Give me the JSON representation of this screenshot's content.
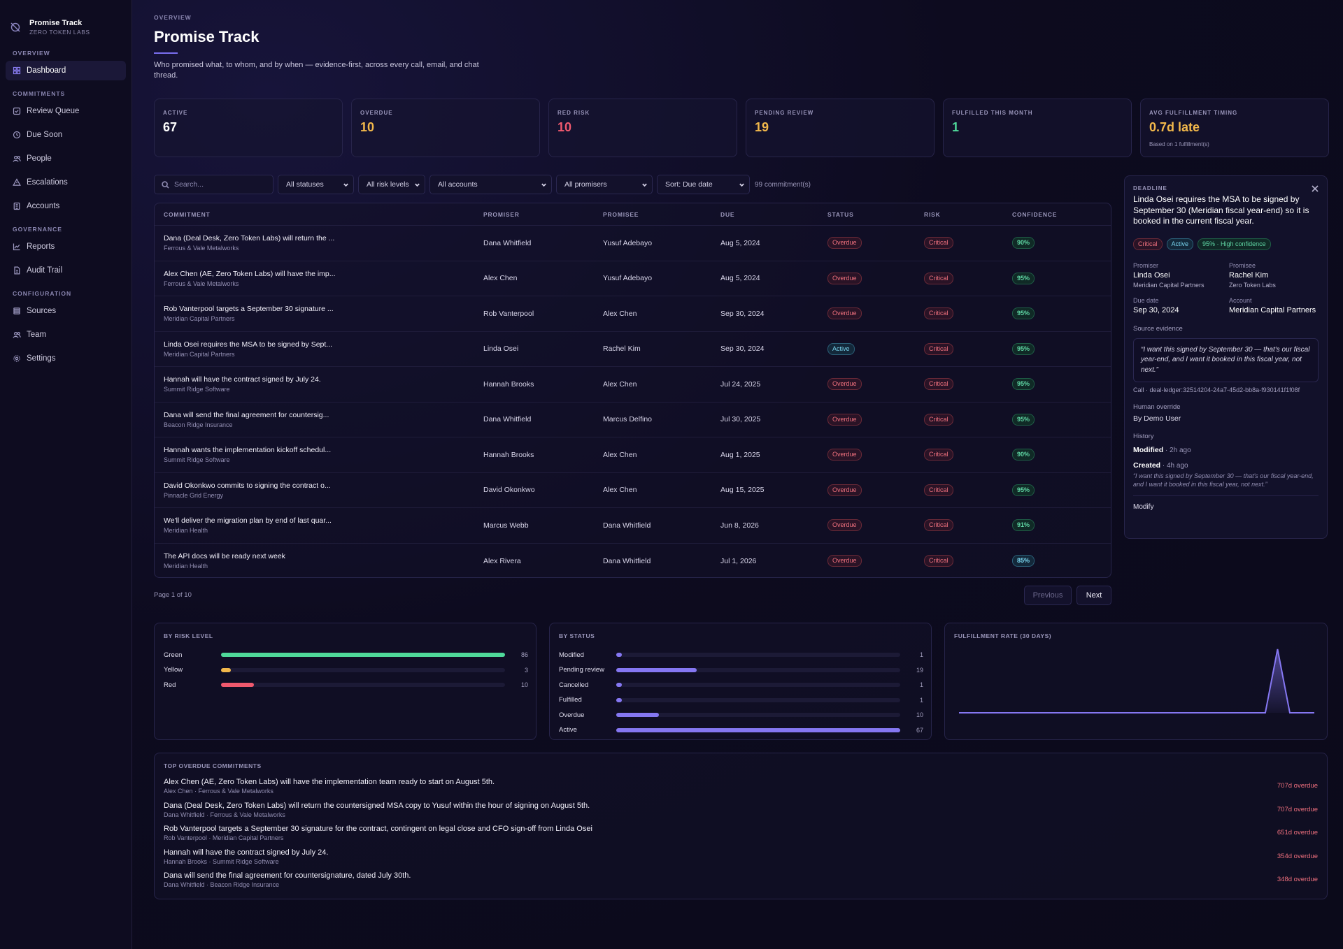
{
  "app": {
    "name": "Promise Track",
    "org": "ZERO TOKEN LABS"
  },
  "nav": {
    "sections": [
      {
        "label": "OVERVIEW",
        "items": [
          {
            "label": "Dashboard",
            "icon": "dashboard-icon",
            "active": true
          }
        ]
      },
      {
        "label": "COMMITMENTS",
        "items": [
          {
            "label": "Review Queue",
            "icon": "checkbox-icon"
          },
          {
            "label": "Due Soon",
            "icon": "clock-icon"
          },
          {
            "label": "People",
            "icon": "people-icon"
          },
          {
            "label": "Escalations",
            "icon": "warning-icon"
          },
          {
            "label": "Accounts",
            "icon": "building-icon"
          }
        ]
      },
      {
        "label": "GOVERNANCE",
        "items": [
          {
            "label": "Reports",
            "icon": "chart-icon"
          },
          {
            "label": "Audit Trail",
            "icon": "document-icon"
          }
        ]
      },
      {
        "label": "CONFIGURATION",
        "items": [
          {
            "label": "Sources",
            "icon": "list-icon"
          },
          {
            "label": "Team",
            "icon": "people-icon"
          },
          {
            "label": "Settings",
            "icon": "gear-icon"
          }
        ]
      }
    ]
  },
  "header": {
    "eyebrow": "OVERVIEW",
    "title": "Promise Track",
    "description": "Who promised what, to whom, and by when — evidence-first, across every call, email, and chat thread."
  },
  "stats": [
    {
      "label": "ACTIVE",
      "value": "67",
      "color": "#ffffff"
    },
    {
      "label": "OVERDUE",
      "value": "10",
      "color": "#f2b84b"
    },
    {
      "label": "RED RISK",
      "value": "10",
      "color": "#f0596e"
    },
    {
      "label": "PENDING REVIEW",
      "value": "19",
      "color": "#f2b84b"
    },
    {
      "label": "FULFILLED THIS MONTH",
      "value": "1",
      "color": "#4fd99a"
    },
    {
      "label": "AVG FULFILLMENT TIMING",
      "value": "0.7d late",
      "color": "#f2b84b",
      "note": "Based on 1 fulfillment(s)"
    }
  ],
  "filters": {
    "search_placeholder": "Search...",
    "status": "All statuses",
    "risk": "All risk levels",
    "accounts": "All accounts",
    "promisers": "All promisers",
    "sort": "Sort: Due date",
    "count": "99 commitment(s)"
  },
  "table": {
    "headers": [
      "COMMITMENT",
      "PROMISER",
      "PROMISEE",
      "DUE",
      "STATUS",
      "RISK",
      "CONFIDENCE"
    ],
    "rows": [
      {
        "title": "Dana (Deal Desk, Zero Token Labs) will return the ...",
        "account": "Ferrous & Vale Metalworks",
        "promiser": "Dana Whitfield",
        "promisee": "Yusuf Adebayo",
        "due": "Aug 5, 2024",
        "status": "Overdue",
        "risk": "Critical",
        "confidence": "90%"
      },
      {
        "title": "Alex Chen (AE, Zero Token Labs) will have the imp...",
        "account": "Ferrous & Vale Metalworks",
        "promiser": "Alex Chen",
        "promisee": "Yusuf Adebayo",
        "due": "Aug 5, 2024",
        "status": "Overdue",
        "risk": "Critical",
        "confidence": "95%"
      },
      {
        "title": "Rob Vanterpool targets a September 30 signature ...",
        "account": "Meridian Capital Partners",
        "promiser": "Rob Vanterpool",
        "promisee": "Alex Chen",
        "due": "Sep 30, 2024",
        "status": "Overdue",
        "risk": "Critical",
        "confidence": "95%"
      },
      {
        "title": "Linda Osei requires the MSA to be signed by Sept...",
        "account": "Meridian Capital Partners",
        "promiser": "Linda Osei",
        "promisee": "Rachel Kim",
        "due": "Sep 30, 2024",
        "status": "Active",
        "risk": "Critical",
        "confidence": "95%"
      },
      {
        "title": "Hannah will have the contract signed by July 24.",
        "account": "Summit Ridge Software",
        "promiser": "Hannah Brooks",
        "promisee": "Alex Chen",
        "due": "Jul 24, 2025",
        "status": "Overdue",
        "risk": "Critical",
        "confidence": "95%"
      },
      {
        "title": "Dana will send the final agreement for countersig...",
        "account": "Beacon Ridge Insurance",
        "promiser": "Dana Whitfield",
        "promisee": "Marcus Delfino",
        "due": "Jul 30, 2025",
        "status": "Overdue",
        "risk": "Critical",
        "confidence": "95%"
      },
      {
        "title": "Hannah wants the implementation kickoff schedul...",
        "account": "Summit Ridge Software",
        "promiser": "Hannah Brooks",
        "promisee": "Alex Chen",
        "due": "Aug 1, 2025",
        "status": "Overdue",
        "risk": "Critical",
        "confidence": "90%"
      },
      {
        "title": "David Okonkwo commits to signing the contract o...",
        "account": "Pinnacle Grid Energy",
        "promiser": "David Okonkwo",
        "promisee": "Alex Chen",
        "due": "Aug 15, 2025",
        "status": "Overdue",
        "risk": "Critical",
        "confidence": "95%"
      },
      {
        "title": "We'll deliver the migration plan by end of last quar...",
        "account": "Meridian Health",
        "promiser": "Marcus Webb",
        "promisee": "Dana Whitfield",
        "due": "Jun 8, 2026",
        "status": "Overdue",
        "risk": "Critical",
        "confidence": "91%"
      },
      {
        "title": "The API docs will be ready next week",
        "account": "Meridian Health",
        "promiser": "Alex Rivera",
        "promisee": "Dana Whitfield",
        "due": "Jul 1, 2026",
        "status": "Overdue",
        "risk": "Critical",
        "confidence": "85%"
      }
    ]
  },
  "pager": {
    "text": "Page 1 of 10",
    "prev": "Previous",
    "next": "Next"
  },
  "detail": {
    "eyebrow": "DEADLINE",
    "title": "Linda Osei requires the MSA to be signed by September 30 (Meridian fiscal year-end) so it is booked in the current fiscal year.",
    "tags": [
      "Critical",
      "Active",
      "95% · High confidence"
    ],
    "promiser_label": "Promiser",
    "promiser": "Linda Osei",
    "promiser_org": "Meridian Capital Partners",
    "promisee_label": "Promisee",
    "promisee": "Rachel Kim",
    "promisee_org": "Zero Token Labs",
    "due_label": "Due date",
    "due": "Sep 30, 2024",
    "account_label": "Account",
    "account": "Meridian Capital Partners",
    "evidence_label": "Source evidence",
    "evidence": "“I want this signed by September 30 — that's our fiscal year-end, and I want it booked in this fiscal year, not next.”",
    "source": "Call · deal-ledger:32514204-24a7-45d2-bb8a-f930141f1f08f",
    "override_label": "Human override",
    "override": "By Demo User",
    "history_label": "History",
    "hist1_action": "Modified",
    "hist1_time": " · 2h ago",
    "hist2_action": "Created",
    "hist2_time": " · 4h ago",
    "hist2_quote": "“I want this signed by September 30 — that's our fiscal year-end, and I want it booked in this fiscal year, not next.”",
    "modify": "Modify"
  },
  "risk_panel": {
    "title": "BY RISK LEVEL",
    "max": 86,
    "rows": [
      {
        "label": "Green",
        "value": 86,
        "color": "#4fd99a"
      },
      {
        "label": "Yellow",
        "value": 3,
        "color": "#f2b84b"
      },
      {
        "label": "Red",
        "value": 10,
        "color": "#f0596e"
      }
    ]
  },
  "status_panel": {
    "title": "BY STATUS",
    "max": 67,
    "rows": [
      {
        "label": "Modified",
        "value": 1
      },
      {
        "label": "Pending review",
        "value": 19
      },
      {
        "label": "Cancelled",
        "value": 1
      },
      {
        "label": "Fulfilled",
        "value": 1
      },
      {
        "label": "Overdue",
        "value": 10
      },
      {
        "label": "Active",
        "value": 67
      }
    ],
    "color": "#8577f2"
  },
  "chart_data": {
    "type": "area",
    "title": "FULFILLMENT RATE (30 DAYS)",
    "values": [
      0,
      0,
      0,
      0,
      0,
      0,
      0,
      0,
      0,
      0,
      0,
      0,
      0,
      0,
      0,
      0,
      0,
      0,
      0,
      0,
      0,
      0,
      0,
      0,
      0,
      0,
      1,
      0,
      0,
      0
    ],
    "ylim": [
      0,
      1
    ],
    "color": "#8577f2"
  },
  "overdue": {
    "title": "TOP OVERDUE COMMITMENTS",
    "items": [
      {
        "title": "Alex Chen (AE, Zero Token Labs) will have the implementation team ready to start on August 5th.",
        "sub": "Alex Chen · Ferrous & Vale Metalworks",
        "late": "707d overdue"
      },
      {
        "title": "Dana (Deal Desk, Zero Token Labs) will return the countersigned MSA copy to Yusuf within the hour of signing on August 5th.",
        "sub": "Dana Whitfield · Ferrous & Vale Metalworks",
        "late": "707d overdue"
      },
      {
        "title": "Rob Vanterpool targets a September 30 signature for the contract, contingent on legal close and CFO sign-off from Linda Osei",
        "sub": "Rob Vanterpool · Meridian Capital Partners",
        "late": "651d overdue"
      },
      {
        "title": "Hannah will have the contract signed by July 24.",
        "sub": "Hannah Brooks · Summit Ridge Software",
        "late": "354d overdue"
      },
      {
        "title": "Dana will send the final agreement for countersignature, dated July 30th.",
        "sub": "Dana Whitfield · Beacon Ridge Insurance",
        "late": "348d overdue"
      }
    ]
  }
}
